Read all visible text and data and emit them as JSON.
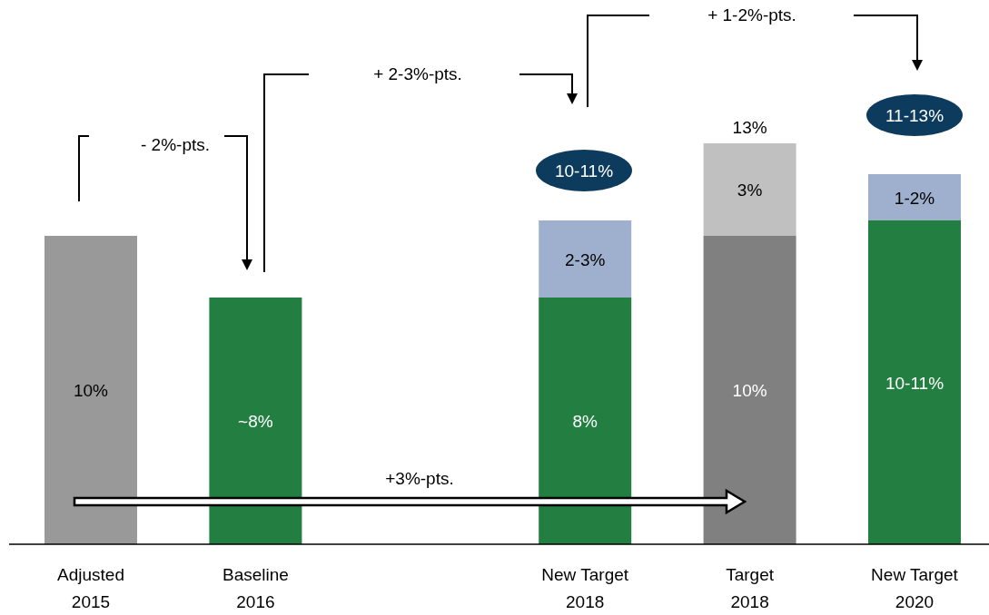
{
  "chart_data": {
    "type": "bar",
    "stacked": true,
    "categories": [
      "Adjusted\n2015",
      "Baseline\n2016",
      null,
      "New Target\n2018",
      "Target\n2018",
      "New Target\n2020"
    ],
    "series": [
      {
        "colors": [
          "#999999",
          "#237f41",
          null,
          "#237f41",
          "#808080",
          "#237f41"
        ],
        "values": [
          10,
          8,
          null,
          8,
          10,
          10.5
        ],
        "value_labels": [
          "10%",
          "~8%",
          null,
          "8%",
          "10%",
          "10-11%"
        ]
      },
      {
        "colors": [
          null,
          null,
          null,
          "#9fb0cf",
          "#c0c0c0",
          "#9fb0cf"
        ],
        "values": [
          null,
          null,
          null,
          2.5,
          3,
          1.5
        ],
        "value_labels": [
          null,
          null,
          null,
          "2-3%",
          "3%",
          "1-2%"
        ]
      }
    ],
    "totals": [
      null,
      null,
      null,
      null,
      "13%",
      null
    ],
    "annotations": [
      "- 2%-pts.",
      "+ 2-3%-pts.",
      "+ 1-2%-pts.",
      "+3%-pts.",
      "10-11%",
      "11-13%"
    ]
  }
}
